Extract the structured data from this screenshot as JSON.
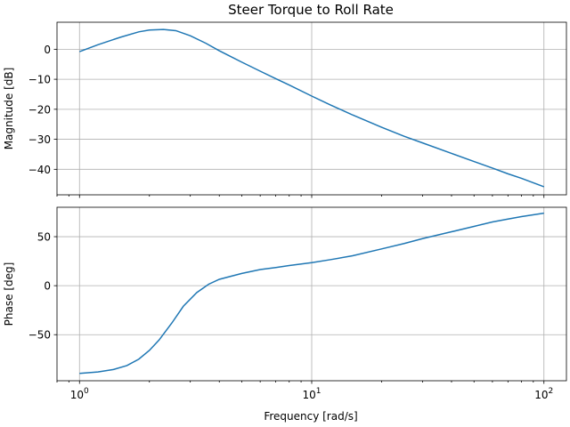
{
  "chart_data": {
    "type": "line",
    "title": "Steer Torque to Roll Rate",
    "xlabel": "Frequency [rad/s]",
    "xscale": "log",
    "xlim": [
      0.8,
      125
    ],
    "grid": true,
    "xticks": [
      {
        "value": 1,
        "base": "10",
        "exp": "0"
      },
      {
        "value": 10,
        "base": "10",
        "exp": "1"
      },
      {
        "value": 100,
        "base": "10",
        "exp": "2"
      }
    ],
    "panels": [
      {
        "ylabel": "Magnitude [dB]",
        "ylim": [
          -48.5,
          9
        ],
        "yticks": [
          0,
          -10,
          -20,
          -30,
          -40
        ],
        "ytick_labels": [
          "0",
          "−10",
          "−20",
          "−30",
          "−40"
        ],
        "series": [
          {
            "color": "#1f77b4",
            "x": [
              1.0,
              1.2,
              1.5,
              1.8,
              2.0,
              2.3,
              2.6,
              3.0,
              3.5,
              4.0,
              5.0,
              6.0,
              7.0,
              8.0,
              10.0,
              12.0,
              15.0,
              20.0,
              25.0,
              30.0,
              40.0,
              50.0,
              60.0,
              70.0,
              80.0,
              100.0
            ],
            "y": [
              -0.8,
              1.5,
              4.0,
              5.8,
              6.4,
              6.6,
              6.2,
              4.5,
              2.0,
              -0.5,
              -4.3,
              -7.3,
              -9.8,
              -11.9,
              -15.6,
              -18.5,
              -21.9,
              -26.0,
              -29.0,
              -31.2,
              -34.7,
              -37.4,
              -39.6,
              -41.5,
              -43.0,
              -45.8
            ]
          }
        ]
      },
      {
        "ylabel": "Phase [deg]",
        "ylim": [
          -97,
          80
        ],
        "yticks": [
          50,
          0,
          -50
        ],
        "ytick_labels": [
          "50",
          "0",
          "−50"
        ],
        "series": [
          {
            "color": "#1f77b4",
            "x": [
              1.0,
              1.2,
              1.4,
              1.6,
              1.8,
              2.0,
              2.2,
              2.5,
              2.8,
              3.2,
              3.6,
              4.0,
              5.0,
              6.0,
              7.0,
              8.0,
              10.0,
              12.0,
              15.0,
              20.0,
              25.0,
              30.0,
              40.0,
              50.0,
              60.0,
              70.0,
              80.0,
              100.0
            ],
            "y": [
              -89.5,
              -88.0,
              -85.5,
              -81.5,
              -75.0,
              -66.0,
              -55.5,
              -38.0,
              -21.0,
              -7.0,
              1.5,
              6.5,
              12.5,
              16.5,
              18.5,
              20.5,
              23.5,
              26.5,
              30.5,
              37.5,
              43.0,
              48.0,
              55.0,
              60.5,
              65.0,
              68.0,
              70.5,
              74.0
            ]
          }
        ]
      }
    ]
  }
}
